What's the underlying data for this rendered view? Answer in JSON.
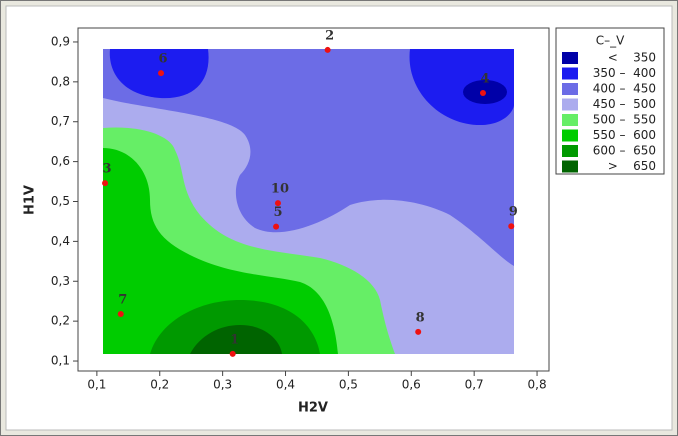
{
  "chart_data": {
    "type": "contour",
    "x_label": "H2V",
    "y_label": "H1V",
    "xlim": [
      0.07,
      0.819
    ],
    "ylim": [
      0.075,
      0.935
    ],
    "xticks": [
      {
        "value": 0.1,
        "label": "0,1"
      },
      {
        "value": 0.2,
        "label": "0,2"
      },
      {
        "value": 0.3,
        "label": "0,3"
      },
      {
        "value": 0.4,
        "label": "0,4"
      },
      {
        "value": 0.5,
        "label": "0,5"
      },
      {
        "value": 0.6,
        "label": "0,6"
      },
      {
        "value": 0.7,
        "label": "0,7"
      },
      {
        "value": 0.8,
        "label": "0,8"
      }
    ],
    "yticks": [
      {
        "value": 0.1,
        "label": "0,1"
      },
      {
        "value": 0.2,
        "label": "0,2"
      },
      {
        "value": 0.3,
        "label": "0,3"
      },
      {
        "value": 0.4,
        "label": "0,4"
      },
      {
        "value": 0.5,
        "label": "0,5"
      },
      {
        "value": 0.6,
        "label": "0,6"
      },
      {
        "value": 0.7,
        "label": "0,7"
      },
      {
        "value": 0.8,
        "label": "0,8"
      },
      {
        "value": 0.9,
        "label": "0,9"
      }
    ],
    "legend_title": "C–_V",
    "legend": [
      {
        "label": "<    350",
        "color": "#0000a8"
      },
      {
        "label": "350 –  400",
        "color": "#1c1cf0"
      },
      {
        "label": "400 –  450",
        "color": "#6c6ce6"
      },
      {
        "label": "450 –  500",
        "color": "#acacee"
      },
      {
        "label": "500 –  550",
        "color": "#66ee66"
      },
      {
        "label": "550 –  600",
        "color": "#00cc00"
      },
      {
        "label": "600 –  650",
        "color": "#009900"
      },
      {
        "label": ">    650",
        "color": "#006400"
      }
    ],
    "point_color": "#ee1111",
    "points": {
      "labels": [
        "1",
        "2",
        "3",
        "4",
        "5",
        "6",
        "7",
        "8",
        "9",
        "10"
      ],
      "x": [
        0.316,
        0.467,
        0.113,
        0.714,
        0.385,
        0.202,
        0.138,
        0.611,
        0.759,
        0.388
      ],
      "y": [
        0.118,
        0.88,
        0.546,
        0.772,
        0.437,
        0.822,
        0.218,
        0.173,
        0.438,
        0.496
      ]
    }
  }
}
